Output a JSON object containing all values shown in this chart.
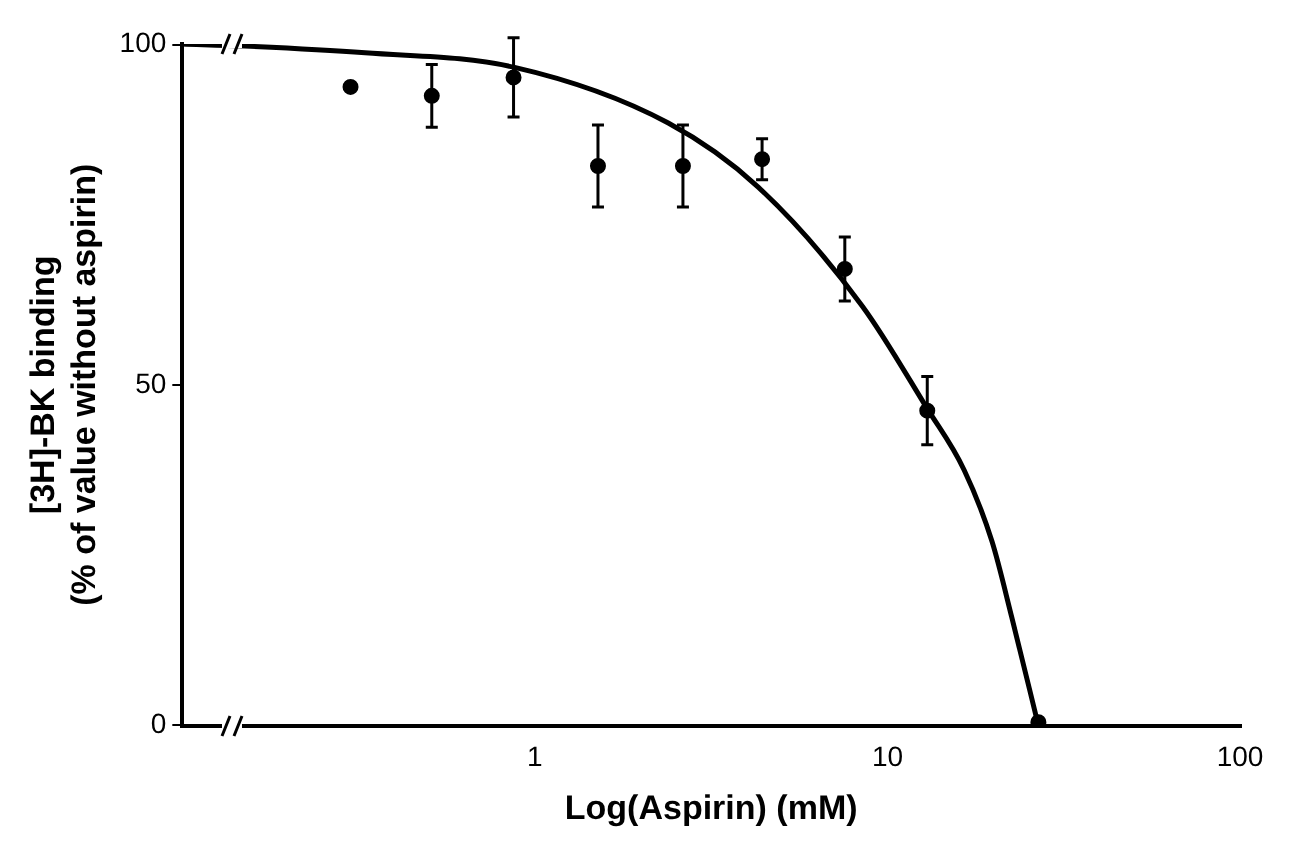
{
  "chart_data": {
    "type": "scatter",
    "xlabel": "Log(Aspirin) (mM)",
    "ylabel": "[3H]-BK binding\n(% of value without aspirin)",
    "log": "x",
    "xlim": [
      0.1,
      100
    ],
    "xticks": [
      1,
      10,
      100
    ],
    "ylim": [
      0,
      100
    ],
    "yticks": [
      0,
      50,
      100
    ],
    "grid": false,
    "legend": false,
    "marker": "circle",
    "series": [
      {
        "color": "#000000",
        "x": [
          0.3,
          0.51,
          0.87,
          1.51,
          2.63,
          4.41,
          7.57,
          12.97,
          26.8
        ],
        "values": [
          93.7,
          92.4,
          95.1,
          82.1,
          82.1,
          83.1,
          67.0,
          46.2,
          0.5
        ],
        "errors": [
          null,
          4.6,
          5.8,
          6,
          6,
          3,
          4.7,
          5,
          null
        ]
      },
      {
        "type": "line",
        "color": "#000000",
        "marker": "none",
        "x": [
          0.1,
          0.15,
          0.33,
          0.87,
          2.39,
          4.3,
          8.5,
          12.97,
          16.5,
          19.8,
          22.5,
          26.8
        ],
        "values": [
          100,
          99.7,
          98.7,
          96.6,
          88.4,
          79,
          61.5,
          46.5,
          37.5,
          27,
          16,
          0
        ]
      }
    ]
  }
}
